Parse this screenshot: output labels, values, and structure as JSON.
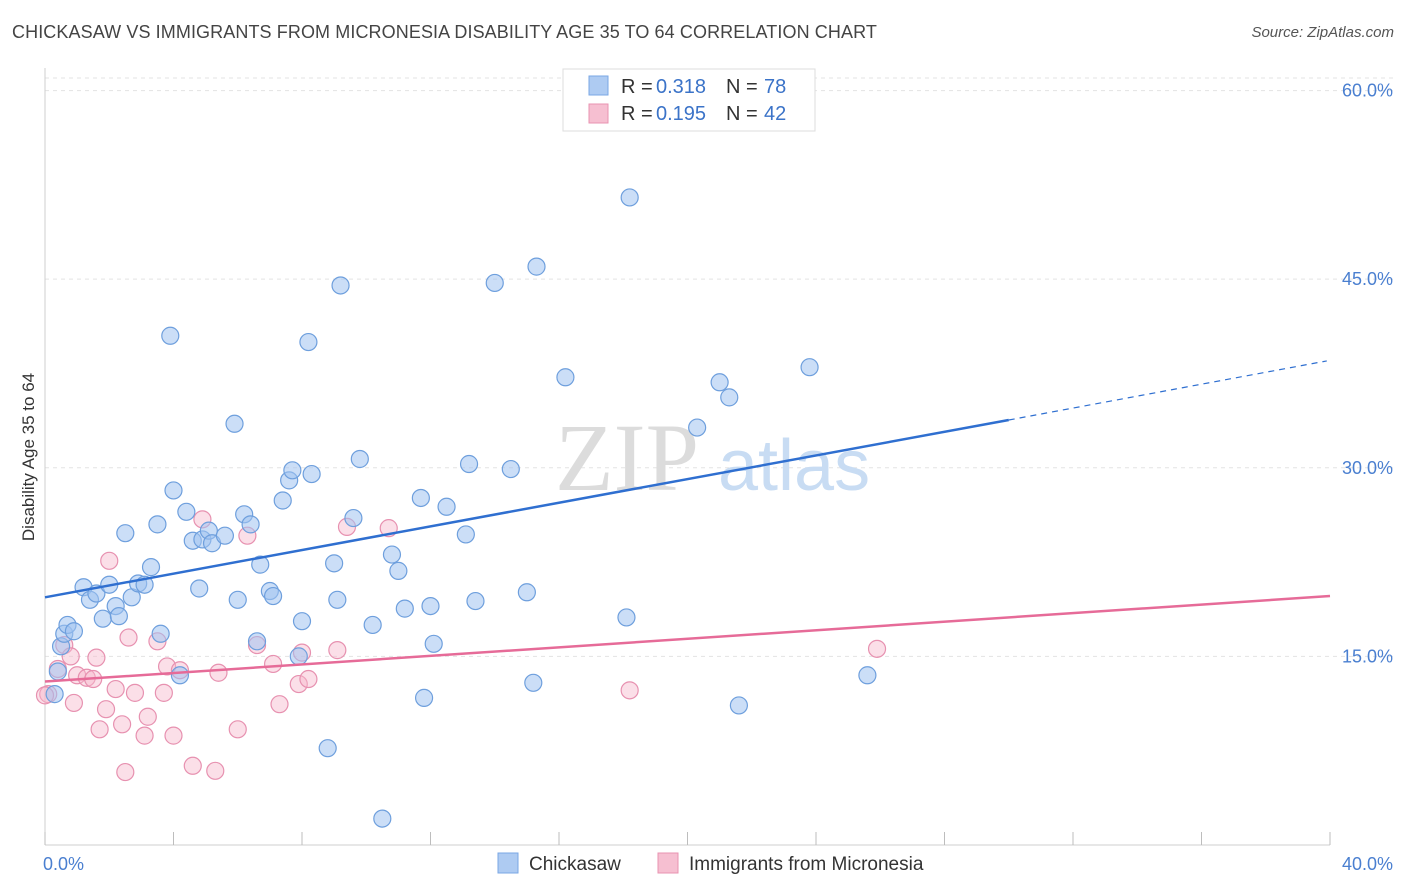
{
  "header": {
    "title": "CHICKASAW VS IMMIGRANTS FROM MICRONESIA DISABILITY AGE 35 TO 64 CORRELATION CHART",
    "source": "Source: ZipAtlas.com"
  },
  "watermark": {
    "part1": "ZIP",
    "part2": "atlas"
  },
  "legend": {
    "r_label": "R =",
    "n_label": "N =",
    "entries": [
      {
        "r": "0.318",
        "n": "78",
        "fill": "#aecbf2",
        "stroke": "#7aa7e4"
      },
      {
        "r": "0.195",
        "n": "42",
        "fill": "#f6bfd1",
        "stroke": "#e893b1"
      }
    ]
  },
  "colors": {
    "blue_point_fill": "rgba(160,195,240,0.55)",
    "blue_point_stroke": "#6e9fdd",
    "pink_point_fill": "rgba(246,185,205,0.45)",
    "pink_point_stroke": "#e791b0",
    "blue_line": "#2f6fd0",
    "pink_line": "#e66b98",
    "grid": "#e3e3e3",
    "tick_label": "#4a7fd0"
  },
  "chart_data": {
    "type": "scatter",
    "title": "CHICKASAW VS IMMIGRANTS FROM MICRONESIA DISABILITY AGE 35 TO 64 CORRELATION CHART",
    "xlabel": "",
    "ylabel": "Disability Age 35 to 64",
    "xlim": [
      0,
      40
    ],
    "ylim": [
      0,
      61
    ],
    "x_tick_labels": [
      "0.0%",
      "40.0%"
    ],
    "y_ticks": [
      15,
      30,
      45,
      60
    ],
    "y_tick_labels": [
      "15.0%",
      "30.0%",
      "45.0%",
      "60.0%"
    ],
    "grid": true,
    "legend_position": "top-center",
    "series": [
      {
        "name": "Chickasaw",
        "color": "#7aa7e4",
        "r": 0.318,
        "n": 78,
        "trend": {
          "x0": 0,
          "y0": 19.7,
          "x1": 30.0,
          "y1": 33.8,
          "dashed_to_x": 39.9,
          "dashed_to_y": 38.5
        },
        "points": [
          [
            0.3,
            12.0
          ],
          [
            0.4,
            13.8
          ],
          [
            0.5,
            15.8
          ],
          [
            0.6,
            16.8
          ],
          [
            0.7,
            17.5
          ],
          [
            0.9,
            17.0
          ],
          [
            1.2,
            20.5
          ],
          [
            1.4,
            19.5
          ],
          [
            1.6,
            20.0
          ],
          [
            1.8,
            18.0
          ],
          [
            2.0,
            20.7
          ],
          [
            2.2,
            19.0
          ],
          [
            2.3,
            18.2
          ],
          [
            2.5,
            24.8
          ],
          [
            2.7,
            19.7
          ],
          [
            2.9,
            20.8
          ],
          [
            3.1,
            20.7
          ],
          [
            3.3,
            22.1
          ],
          [
            3.5,
            25.5
          ],
          [
            3.6,
            16.8
          ],
          [
            3.9,
            40.5
          ],
          [
            4.0,
            28.2
          ],
          [
            4.2,
            13.5
          ],
          [
            4.4,
            26.5
          ],
          [
            4.6,
            24.2
          ],
          [
            4.8,
            20.4
          ],
          [
            4.9,
            24.3
          ],
          [
            5.1,
            25.0
          ],
          [
            5.2,
            24.0
          ],
          [
            5.6,
            24.6
          ],
          [
            5.9,
            33.5
          ],
          [
            6.0,
            19.5
          ],
          [
            6.2,
            26.3
          ],
          [
            6.4,
            25.5
          ],
          [
            6.6,
            16.2
          ],
          [
            6.7,
            22.3
          ],
          [
            7.0,
            20.2
          ],
          [
            7.1,
            19.8
          ],
          [
            7.4,
            27.4
          ],
          [
            7.6,
            29.0
          ],
          [
            7.7,
            29.8
          ],
          [
            7.9,
            15.0
          ],
          [
            8.0,
            17.8
          ],
          [
            8.2,
            40.0
          ],
          [
            8.3,
            29.5
          ],
          [
            8.8,
            7.7
          ],
          [
            9.0,
            22.4
          ],
          [
            9.1,
            19.5
          ],
          [
            9.2,
            44.5
          ],
          [
            9.6,
            26.0
          ],
          [
            9.8,
            30.7
          ],
          [
            10.2,
            17.5
          ],
          [
            10.5,
            2.1
          ],
          [
            10.8,
            23.1
          ],
          [
            11.0,
            21.8
          ],
          [
            11.2,
            18.8
          ],
          [
            11.7,
            27.6
          ],
          [
            11.8,
            11.7
          ],
          [
            12.0,
            19.0
          ],
          [
            12.1,
            16.0
          ],
          [
            12.5,
            26.9
          ],
          [
            13.1,
            24.7
          ],
          [
            13.2,
            30.3
          ],
          [
            13.4,
            19.4
          ],
          [
            14.0,
            44.7
          ],
          [
            14.5,
            29.9
          ],
          [
            15.0,
            20.1
          ],
          [
            15.2,
            12.9
          ],
          [
            15.3,
            46.0
          ],
          [
            16.2,
            37.2
          ],
          [
            18.1,
            18.1
          ],
          [
            18.2,
            51.5
          ],
          [
            20.3,
            33.2
          ],
          [
            21.0,
            36.8
          ],
          [
            21.3,
            35.6
          ],
          [
            21.6,
            11.1
          ],
          [
            23.8,
            38.0
          ],
          [
            25.6,
            13.5
          ]
        ]
      },
      {
        "name": "Immigrants from Micronesia",
        "color": "#e893b1",
        "r": 0.195,
        "n": 42,
        "trend": {
          "x0": 0,
          "y0": 13.0,
          "x1": 40,
          "y1": 19.8
        },
        "points": [
          [
            0.1,
            12.0
          ],
          [
            0.4,
            14.0
          ],
          [
            0.6,
            15.9
          ],
          [
            0.8,
            15.0
          ],
          [
            0.9,
            11.3
          ],
          [
            1.0,
            13.5
          ],
          [
            1.3,
            13.3
          ],
          [
            1.5,
            13.2
          ],
          [
            1.6,
            14.9
          ],
          [
            1.7,
            9.2
          ],
          [
            1.9,
            10.8
          ],
          [
            2.0,
            22.6
          ],
          [
            2.2,
            12.4
          ],
          [
            2.4,
            9.6
          ],
          [
            2.5,
            5.8
          ],
          [
            2.6,
            16.5
          ],
          [
            2.8,
            12.1
          ],
          [
            3.1,
            8.7
          ],
          [
            3.2,
            10.2
          ],
          [
            3.5,
            16.2
          ],
          [
            3.7,
            12.1
          ],
          [
            3.8,
            14.2
          ],
          [
            4.0,
            8.7
          ],
          [
            4.2,
            13.9
          ],
          [
            4.6,
            6.3
          ],
          [
            4.9,
            25.9
          ],
          [
            5.3,
            5.9
          ],
          [
            5.4,
            13.7
          ],
          [
            6.0,
            9.2
          ],
          [
            6.3,
            24.6
          ],
          [
            6.6,
            15.9
          ],
          [
            7.1,
            14.4
          ],
          [
            7.3,
            11.2
          ],
          [
            7.9,
            12.8
          ],
          [
            8.0,
            15.3
          ],
          [
            8.2,
            13.2
          ],
          [
            9.1,
            15.5
          ],
          [
            9.4,
            25.3
          ],
          [
            10.7,
            25.2
          ],
          [
            18.2,
            12.3
          ],
          [
            25.9,
            15.6
          ],
          [
            0.0,
            11.9
          ]
        ]
      }
    ]
  },
  "bottom_legend": [
    {
      "label": "Chickasaw"
    },
    {
      "label": "Immigrants from Micronesia"
    }
  ]
}
